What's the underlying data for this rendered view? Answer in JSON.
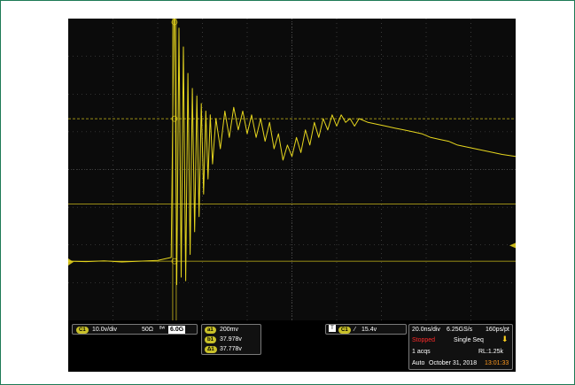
{
  "channel_box": {
    "badge": "C1",
    "scale": "10.0v/div",
    "impedance": "50Ω",
    "bandwidth_icon": "bw-limit-icon",
    "bandwidth": "6.0G"
  },
  "cursor_box": {
    "rows": [
      {
        "badge": "a1",
        "value": "200mv"
      },
      {
        "badge": "b1",
        "value": "37.978v"
      },
      {
        "badge": "Δ1",
        "value": "37.778v"
      }
    ]
  },
  "trigger_box": {
    "badge_icon": "trigger-icon",
    "badge": "C1",
    "slope_icon": "rising-edge-icon",
    "level": "15.4v"
  },
  "acq_box": {
    "timebase": "20.0ns/div",
    "sample_rate": "6.25GS/s",
    "resolution": "160ps/pt",
    "state": "Stopped",
    "mode": "Single Seq",
    "acqs": "1 acqs",
    "record_length": "RL:1.25k",
    "trigger_mode": "Auto",
    "date": "October 31, 2018",
    "time": "13:01:33"
  },
  "colors": {
    "trace": "#e6d61e",
    "grid": "#5a5a5a",
    "cursor": "#c9b81a",
    "stopped": "#ff2a2a",
    "clock": "#ff9a1f"
  },
  "waveform": {
    "unit_x": "ns",
    "unit_y": "v",
    "points": [
      [
        -100,
        0.2
      ],
      [
        -92,
        0.1
      ],
      [
        -84,
        0.3
      ],
      [
        -76,
        0.0
      ],
      [
        -68,
        0.2
      ],
      [
        -60,
        0.4
      ],
      [
        -54,
        1.2
      ],
      [
        -52.5,
        78
      ],
      [
        -51.5,
        -6
      ],
      [
        -50.5,
        62
      ],
      [
        -49.5,
        -4
      ],
      [
        -48.5,
        57
      ],
      [
        -47.5,
        -5
      ],
      [
        -46.5,
        50
      ],
      [
        -45.5,
        2
      ],
      [
        -44.5,
        46
      ],
      [
        -43.5,
        8
      ],
      [
        -42.5,
        44
      ],
      [
        -41.5,
        12
      ],
      [
        -40.5,
        42
      ],
      [
        -39.5,
        18
      ],
      [
        -38.5,
        40
      ],
      [
        -37.5,
        22
      ],
      [
        -36.5,
        39
      ],
      [
        -35.5,
        26
      ],
      [
        -34,
        38
      ],
      [
        -32,
        30
      ],
      [
        -30,
        40
      ],
      [
        -28,
        33
      ],
      [
        -26,
        41
      ],
      [
        -24,
        35
      ],
      [
        -22,
        40
      ],
      [
        -20,
        34
      ],
      [
        -18,
        39
      ],
      [
        -16,
        33
      ],
      [
        -14,
        38
      ],
      [
        -12,
        32
      ],
      [
        -10,
        37
      ],
      [
        -8,
        30
      ],
      [
        -6,
        34
      ],
      [
        -4,
        27
      ],
      [
        -2,
        31
      ],
      [
        0,
        28
      ],
      [
        2,
        33
      ],
      [
        4,
        29
      ],
      [
        6,
        35
      ],
      [
        8,
        31
      ],
      [
        10,
        37
      ],
      [
        12,
        33
      ],
      [
        14,
        38
      ],
      [
        16,
        35
      ],
      [
        18,
        39
      ],
      [
        20,
        36
      ],
      [
        22,
        39
      ],
      [
        24,
        37
      ],
      [
        26,
        38
      ],
      [
        28,
        36
      ],
      [
        30,
        38
      ],
      [
        34,
        37
      ],
      [
        38,
        36.5
      ],
      [
        42,
        36
      ],
      [
        46,
        35.5
      ],
      [
        50,
        35
      ],
      [
        54,
        34.5
      ],
      [
        58,
        34
      ],
      [
        62,
        33
      ],
      [
        66,
        32.5
      ],
      [
        70,
        32
      ],
      [
        74,
        31
      ],
      [
        78,
        30.5
      ],
      [
        82,
        30
      ],
      [
        86,
        29.5
      ],
      [
        90,
        29
      ],
      [
        94,
        28.5
      ],
      [
        100,
        28
      ]
    ]
  }
}
